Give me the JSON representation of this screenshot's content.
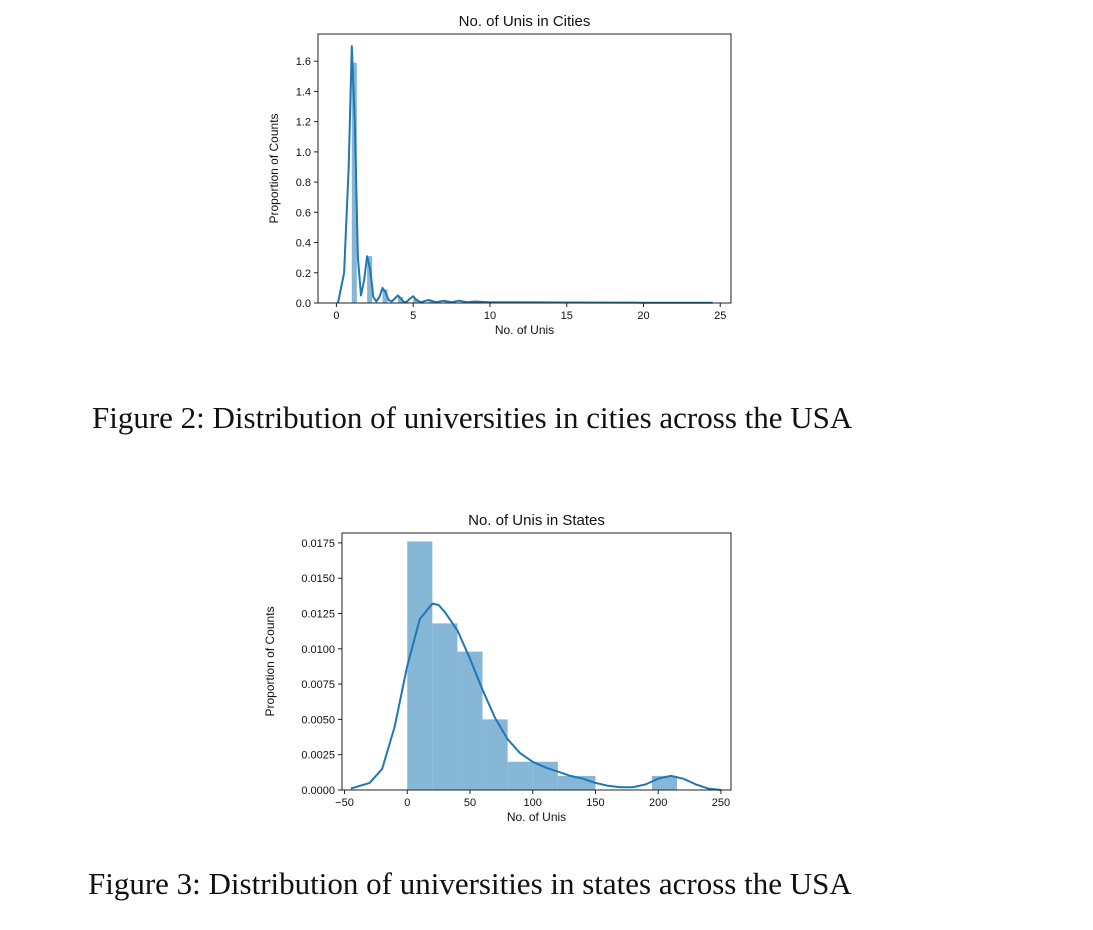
{
  "captions": [
    "Figure 2: Distribution of universities in cities across the USA",
    "Figure 3: Distribution of universities in states across the USA"
  ],
  "chart_data": [
    {
      "type": "bar",
      "subtype": "histogram-with-kde",
      "title": "No. of Unis in Cities",
      "xlabel": "No. of Unis",
      "ylabel": "Proportion of Counts",
      "xlim": [
        -1.2,
        25.7
      ],
      "ylim": [
        0,
        1.78
      ],
      "xticks": [
        0,
        5,
        10,
        15,
        20,
        25
      ],
      "yticks": [
        0.0,
        0.2,
        0.4,
        0.6,
        0.8,
        1.0,
        1.2,
        1.4,
        1.6
      ],
      "ytick_decimals": 1,
      "grid": false,
      "bar_color": "#7fb3d5",
      "line_color": "#1f77b4",
      "bins": [
        {
          "x0": 1.0,
          "x1": 1.33,
          "value": 1.59
        },
        {
          "x0": 2.0,
          "x1": 2.33,
          "value": 0.31
        },
        {
          "x0": 3.0,
          "x1": 3.33,
          "value": 0.09
        },
        {
          "x0": 4.0,
          "x1": 4.33,
          "value": 0.04
        },
        {
          "x0": 5.0,
          "x1": 5.33,
          "value": 0.03
        },
        {
          "x0": 6.0,
          "x1": 6.33,
          "value": 0.01
        },
        {
          "x0": 7.0,
          "x1": 7.33,
          "value": 0.01
        },
        {
          "x0": 8.0,
          "x1": 8.33,
          "value": 0.005
        }
      ],
      "kde": {
        "x": [
          0.1,
          0.5,
          0.8,
          1.0,
          1.2,
          1.4,
          1.6,
          1.8,
          2.0,
          2.2,
          2.4,
          2.6,
          2.8,
          3.0,
          3.2,
          3.4,
          3.6,
          3.8,
          4.0,
          4.2,
          4.4,
          4.6,
          4.8,
          5.0,
          5.2,
          5.5,
          6.0,
          6.5,
          7.0,
          7.5,
          8.0,
          8.5,
          9.0,
          10.0,
          12.0,
          15.0,
          20.0,
          24.5
        ],
        "y": [
          0.0,
          0.2,
          0.9,
          1.7,
          1.2,
          0.3,
          0.05,
          0.15,
          0.31,
          0.22,
          0.04,
          0.01,
          0.04,
          0.1,
          0.07,
          0.02,
          0.01,
          0.03,
          0.05,
          0.03,
          0.005,
          0.01,
          0.03,
          0.045,
          0.02,
          0.005,
          0.02,
          0.005,
          0.015,
          0.005,
          0.015,
          0.005,
          0.01,
          0.005,
          0.005,
          0.003,
          0.002,
          0.002
        ]
      }
    },
    {
      "type": "bar",
      "subtype": "histogram-with-kde",
      "title": "No. of Unis in States",
      "xlabel": "No. of Unis",
      "ylabel": "Proportion of Counts",
      "xlim": [
        -52,
        258
      ],
      "ylim": [
        0,
        0.0182
      ],
      "xticks": [
        -50,
        0,
        50,
        100,
        150,
        200,
        250
      ],
      "yticks": [
        0.0,
        0.0025,
        0.005,
        0.0075,
        0.01,
        0.0125,
        0.015,
        0.0175
      ],
      "ytick_decimals": 4,
      "grid": false,
      "bar_color": "#7fb3d5",
      "line_color": "#1f77b4",
      "bins": [
        {
          "x0": 0,
          "x1": 20,
          "value": 0.0176
        },
        {
          "x0": 20,
          "x1": 40,
          "value": 0.0118
        },
        {
          "x0": 40,
          "x1": 60,
          "value": 0.0098
        },
        {
          "x0": 60,
          "x1": 80,
          "value": 0.005
        },
        {
          "x0": 80,
          "x1": 100,
          "value": 0.002
        },
        {
          "x0": 100,
          "x1": 120,
          "value": 0.002
        },
        {
          "x0": 120,
          "x1": 150,
          "value": 0.001
        },
        {
          "x0": 150,
          "x1": 195,
          "value": 0.0
        },
        {
          "x0": 195,
          "x1": 215,
          "value": 0.001
        }
      ],
      "kde": {
        "x": [
          -45,
          -30,
          -20,
          -10,
          0,
          10,
          20,
          25,
          30,
          40,
          50,
          60,
          70,
          80,
          90,
          100,
          110,
          120,
          130,
          140,
          150,
          160,
          170,
          180,
          190,
          200,
          210,
          220,
          230,
          240,
          250
        ],
        "y": [
          0.0001,
          0.0005,
          0.0015,
          0.0045,
          0.0088,
          0.0121,
          0.0132,
          0.0131,
          0.0126,
          0.0113,
          0.0093,
          0.0071,
          0.0051,
          0.0036,
          0.0026,
          0.002,
          0.0016,
          0.0013,
          0.001,
          0.0008,
          0.0005,
          0.0003,
          0.0002,
          0.0002,
          0.0004,
          0.0008,
          0.001,
          0.0008,
          0.0004,
          0.0001,
          0.0
        ]
      }
    }
  ]
}
